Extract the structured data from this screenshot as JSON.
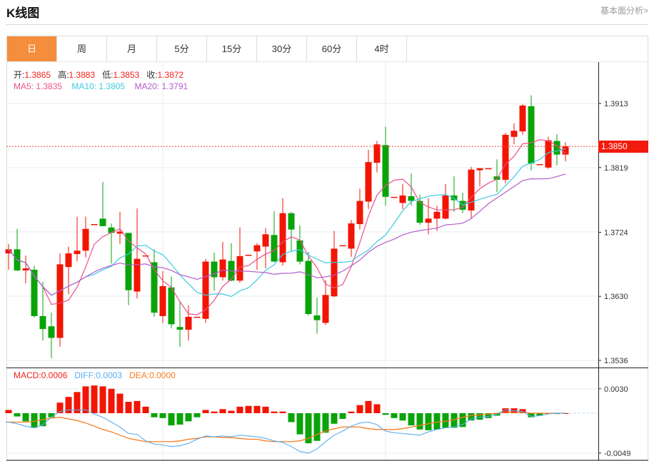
{
  "header": {
    "title": "K线图",
    "link": "基本面分析>"
  },
  "tabs": [
    {
      "label": "日",
      "active": true
    },
    {
      "label": "周"
    },
    {
      "label": "月"
    },
    {
      "label": "5分"
    },
    {
      "label": "15分"
    },
    {
      "label": "30分"
    },
    {
      "label": "60分"
    },
    {
      "label": "4时"
    }
  ],
  "ohlc_legend": {
    "open_label": "开:",
    "open": "1.3865",
    "high_label": "高:",
    "high": "1.3883",
    "low_label": "低:",
    "low": "1.3853",
    "close_label": "收:",
    "close": "1.3872"
  },
  "ma_legend": {
    "ma5": "MA5: 1.3835",
    "ma10": "MA10: 1.3805",
    "ma20": "MA20: 1.3791"
  },
  "macd_legend": {
    "macd": "MACD:0.0006",
    "diff": "DIFF:0.0003",
    "dea": "DEA:0.0000"
  },
  "current_price": "1.3850",
  "colors": {
    "up": "#f21503",
    "down": "#0aa30a",
    "ma5": "#ee4f88",
    "ma10": "#3ccbe0",
    "ma20": "#b55ccb",
    "diff": "#58aef0",
    "dea": "#f57c22",
    "accent": "#f48d3c"
  },
  "chart_data": [
    {
      "type": "candlestick",
      "y_ticks": [
        "1.3913",
        "1.3819",
        "1.3724",
        "1.3630",
        "1.3536"
      ],
      "ylim": [
        1.3536,
        1.3913
      ],
      "ohlc": [
        [
          1.3693,
          1.3707,
          1.3669,
          1.3699
        ],
        [
          1.3699,
          1.3729,
          1.3667,
          1.3668
        ],
        [
          1.3668,
          1.369,
          1.3649,
          1.3671
        ],
        [
          1.3669,
          1.3675,
          1.3599,
          1.3601
        ],
        [
          1.3601,
          1.3651,
          1.3565,
          1.3582
        ],
        [
          1.3586,
          1.3606,
          1.3539,
          1.3569
        ],
        [
          1.3569,
          1.3693,
          1.3556,
          1.3677
        ],
        [
          1.3673,
          1.3703,
          1.3633,
          1.3693
        ],
        [
          1.3692,
          1.3747,
          1.3681,
          1.3697
        ],
        [
          1.3697,
          1.3747,
          1.3687,
          1.3729
        ],
        [
          1.3735,
          1.3736,
          1.3735,
          1.3736
        ],
        [
          1.3744,
          1.3798,
          1.3733,
          1.3733
        ],
        [
          1.3731,
          1.3737,
          1.3678,
          1.3723
        ],
        [
          1.3722,
          1.3754,
          1.3707,
          1.3725
        ],
        [
          1.3723,
          1.3723,
          1.3617,
          1.3639
        ],
        [
          1.3637,
          1.3759,
          1.3627,
          1.3685
        ],
        [
          1.3689,
          1.369,
          1.3689,
          1.369
        ],
        [
          1.368,
          1.3699,
          1.36,
          1.3606
        ],
        [
          1.3601,
          1.3667,
          1.3591,
          1.3645
        ],
        [
          1.3643,
          1.3659,
          1.3583,
          1.3589
        ],
        [
          1.3585,
          1.3623,
          1.3556,
          1.3581
        ],
        [
          1.3581,
          1.3617,
          1.3565,
          1.36
        ],
        [
          1.3599,
          1.36,
          1.3599,
          1.36
        ],
        [
          1.3597,
          1.3685,
          1.3591,
          1.3681
        ],
        [
          1.3681,
          1.3694,
          1.3638,
          1.3658
        ],
        [
          1.3658,
          1.371,
          1.3653,
          1.3684
        ],
        [
          1.3682,
          1.3708,
          1.3652,
          1.3653
        ],
        [
          1.3653,
          1.3731,
          1.365,
          1.3689
        ],
        [
          1.369,
          1.3691,
          1.369,
          1.3691
        ],
        [
          1.3696,
          1.3708,
          1.3669,
          1.3705
        ],
        [
          1.3703,
          1.373,
          1.3671,
          1.3721
        ],
        [
          1.372,
          1.3755,
          1.368,
          1.3681
        ],
        [
          1.368,
          1.3774,
          1.3675,
          1.3752
        ],
        [
          1.3752,
          1.3754,
          1.3696,
          1.3728
        ],
        [
          1.3712,
          1.3734,
          1.3677,
          1.3681
        ],
        [
          1.3682,
          1.3695,
          1.3602,
          1.3604
        ],
        [
          1.3602,
          1.3628,
          1.3575,
          1.3595
        ],
        [
          1.3591,
          1.3654,
          1.3588,
          1.3632
        ],
        [
          1.363,
          1.3726,
          1.3629,
          1.37
        ],
        [
          1.3704,
          1.3705,
          1.3704,
          1.3705
        ],
        [
          1.37,
          1.3742,
          1.3688,
          1.3737
        ],
        [
          1.3736,
          1.3788,
          1.3728,
          1.377
        ],
        [
          1.3769,
          1.3845,
          1.3758,
          1.3827
        ],
        [
          1.3826,
          1.3858,
          1.3812,
          1.3853
        ],
        [
          1.3852,
          1.3879,
          1.3763,
          1.3776
        ],
        [
          1.3775,
          1.3776,
          1.3775,
          1.3776
        ],
        [
          1.3767,
          1.3795,
          1.3758,
          1.3778
        ],
        [
          1.3777,
          1.381,
          1.3763,
          1.377
        ],
        [
          1.377,
          1.3779,
          1.3735,
          1.3738
        ],
        [
          1.3738,
          1.3774,
          1.3721,
          1.3744
        ],
        [
          1.3744,
          1.3763,
          1.3726,
          1.3754
        ],
        [
          1.3744,
          1.3795,
          1.3743,
          1.3778
        ],
        [
          1.3778,
          1.3806,
          1.3754,
          1.3771
        ],
        [
          1.377,
          1.3782,
          1.3752,
          1.3757
        ],
        [
          1.3756,
          1.382,
          1.3744,
          1.3816
        ],
        [
          1.3815,
          1.3818,
          1.3791,
          1.3818
        ],
        [
          1.3817,
          1.3818,
          1.3817,
          1.3818
        ],
        [
          1.3806,
          1.3831,
          1.3783,
          1.3801
        ],
        [
          1.3801,
          1.387,
          1.3796,
          1.3867
        ],
        [
          1.3864,
          1.3884,
          1.3853,
          1.3873
        ],
        [
          1.3872,
          1.3912,
          1.3867,
          1.391
        ],
        [
          1.3909,
          1.3925,
          1.3815,
          1.3825
        ],
        [
          1.3823,
          1.3824,
          1.3823,
          1.3824
        ],
        [
          1.3819,
          1.3864,
          1.3817,
          1.3859
        ],
        [
          1.3858,
          1.3868,
          1.3822,
          1.3838
        ],
        [
          1.3838,
          1.3856,
          1.3828,
          1.385
        ]
      ],
      "ma_periods": [
        5,
        10,
        20
      ],
      "last_price": 1.385
    },
    {
      "type": "bar+line",
      "name": "MACD",
      "y_ticks": [
        "0.0030",
        "-0.0049"
      ],
      "ylim": [
        -0.0049,
        0.003
      ],
      "macd": [
        0.0004,
        -0.0004,
        -0.001,
        -0.0018,
        -0.0016,
        -0.0005,
        0.0013,
        0.002,
        0.0026,
        0.0033,
        0.0034,
        0.0033,
        0.003,
        0.0024,
        0.0014,
        0.0015,
        0.0008,
        -0.0005,
        -0.0006,
        -0.0015,
        -0.0014,
        -0.001,
        -0.0005,
        0.0004,
        0.0002,
        0.0005,
        0.0003,
        0.0008,
        0.0009,
        0.0009,
        0.0008,
        0.0002,
        0.0002,
        -0.0011,
        -0.0026,
        -0.0037,
        -0.0034,
        -0.0024,
        -0.0013,
        -0.0007,
        0.0002,
        0.001,
        0.0015,
        0.0011,
        -0.0002,
        -0.0006,
        -0.0009,
        -0.0015,
        -0.002,
        -0.0021,
        -0.002,
        -0.0018,
        -0.0018,
        -0.0017,
        -0.0009,
        -0.0008,
        -0.0006,
        -0.0003,
        0.0006,
        0.0006,
        0.0005,
        -0.0005,
        -0.0003,
        0.0,
        -0.0001,
        0.0
      ],
      "diff": [
        -0.0011,
        -0.0013,
        -0.0016,
        -0.0018,
        -0.0014,
        -0.0005,
        0.0002,
        0.0004,
        0.0004,
        0.0004,
        -0.0001,
        -0.0005,
        -0.0011,
        -0.0017,
        -0.0025,
        -0.0026,
        -0.0034,
        -0.0038,
        -0.0039,
        -0.0041,
        -0.004,
        -0.0037,
        -0.0032,
        -0.0028,
        -0.0029,
        -0.0028,
        -0.0029,
        -0.0027,
        -0.0028,
        -0.0029,
        -0.0031,
        -0.0034,
        -0.0036,
        -0.0041,
        -0.0047,
        -0.0049,
        -0.0044,
        -0.0035,
        -0.0027,
        -0.0022,
        -0.0016,
        -0.0012,
        -0.0011,
        -0.0014,
        -0.0022,
        -0.0024,
        -0.0025,
        -0.0026,
        -0.0027,
        -0.0023,
        -0.002,
        -0.0018,
        -0.0017,
        -0.0014,
        -0.0007,
        -0.0005,
        -0.0004,
        -0.0001,
        0.0004,
        0.0003,
        0.0002,
        -0.0004,
        -0.0003,
        -0.0001,
        0.0,
        0.0
      ],
      "dea": [
        -0.0011,
        -0.0011,
        -0.0011,
        -0.001,
        -0.0008,
        -0.0006,
        -0.0005,
        -0.0007,
        -0.0009,
        -0.0012,
        -0.0016,
        -0.002,
        -0.0023,
        -0.0027,
        -0.0031,
        -0.0033,
        -0.0035,
        -0.0035,
        -0.0035,
        -0.0035,
        -0.0034,
        -0.0032,
        -0.0031,
        -0.0029,
        -0.0029,
        -0.003,
        -0.003,
        -0.0031,
        -0.0032,
        -0.0032,
        -0.0034,
        -0.0035,
        -0.0035,
        -0.0035,
        -0.0034,
        -0.0031,
        -0.0026,
        -0.0022,
        -0.0019,
        -0.0017,
        -0.0017,
        -0.0017,
        -0.0019,
        -0.002,
        -0.002,
        -0.002,
        -0.0019,
        -0.0017,
        -0.0015,
        -0.0013,
        -0.0011,
        -0.001,
        -0.0008,
        -0.0005,
        -0.0003,
        -0.0002,
        -0.0001,
        0.0,
        0.0001,
        0.0001,
        0.0001,
        0.0,
        0.0,
        0.0,
        0.0,
        0.0
      ]
    }
  ]
}
